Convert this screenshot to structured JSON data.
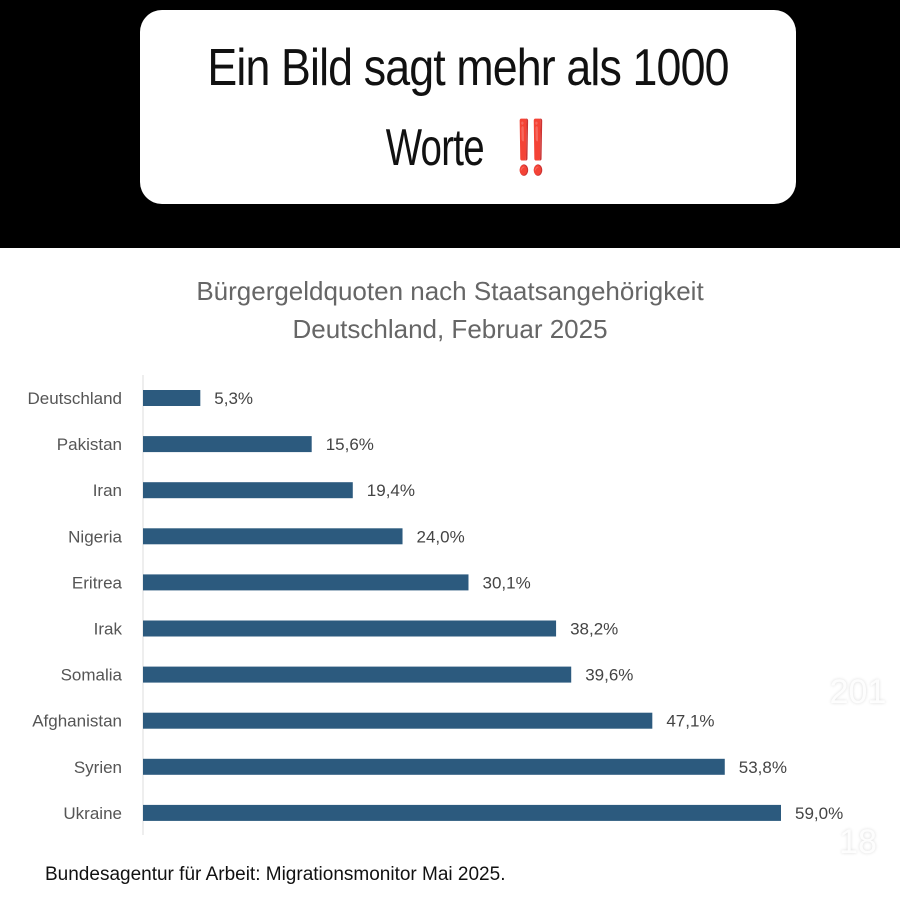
{
  "overlay": {
    "caption_line1": "Ein Bild sagt mehr als 1000",
    "caption_line2": "Worte",
    "caption_emoji": "‼️",
    "likes": "201",
    "comments": "18"
  },
  "chart_data": {
    "type": "bar",
    "orientation": "horizontal",
    "title": "Bürgergeldquoten nach Staatsangehörigkeit",
    "subtitle": "Deutschland, Februar 2025",
    "categories": [
      "Deutschland",
      "Pakistan",
      "Iran",
      "Nigeria",
      "Eritrea",
      "Irak",
      "Somalia",
      "Afghanistan",
      "Syrien",
      "Ukraine"
    ],
    "values": [
      5.3,
      15.6,
      19.4,
      24.0,
      30.1,
      38.2,
      39.6,
      47.1,
      53.8,
      59.0
    ],
    "labels": [
      "5,3%",
      "15,6%",
      "19,4%",
      "24,0%",
      "30,1%",
      "38,2%",
      "39,6%",
      "47,1%",
      "53,8%",
      "59,0%"
    ],
    "xlim": [
      0,
      59
    ],
    "bar_color": "#2c5a7e",
    "grid": false
  },
  "source": "Bundesagentur für Arbeit: Migrationsmonitor Mai 2025."
}
